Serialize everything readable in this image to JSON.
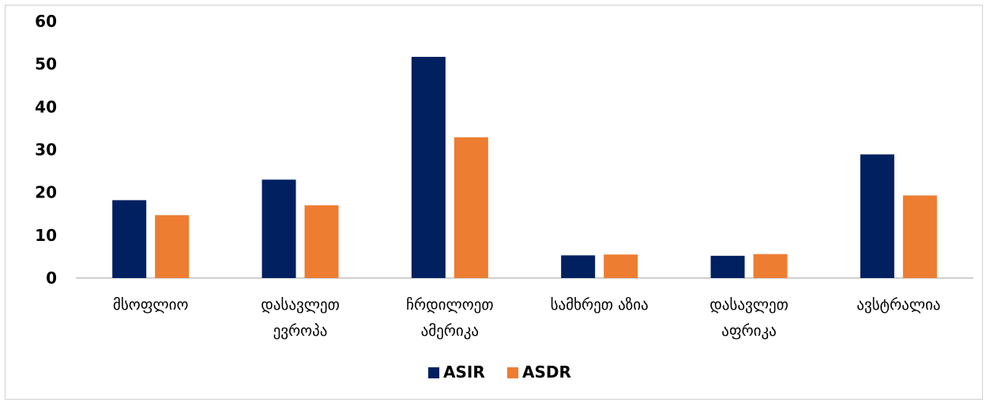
{
  "chart_data": {
    "type": "bar",
    "categories": [
      [
        "მსოფლიო"
      ],
      [
        "დასავლეთ",
        "ევროპა"
      ],
      [
        "ჩრდილოეთ",
        "ამერიკა"
      ],
      [
        "სამხრეთ აზია"
      ],
      [
        "დასავლეთ",
        "აფრიკა"
      ],
      [
        "ავსტრალია"
      ]
    ],
    "series": [
      {
        "name": "ASIR",
        "color": "#002060",
        "values": [
          18.2,
          23.0,
          51.7,
          5.3,
          5.2,
          28.9
        ]
      },
      {
        "name": "ASDR",
        "color": "#ED7D31",
        "values": [
          14.7,
          17.0,
          32.9,
          5.5,
          5.6,
          19.3
        ]
      }
    ],
    "ylim": [
      0,
      60
    ],
    "yticks": [
      0,
      10,
      20,
      30,
      40,
      50,
      60
    ],
    "grid": false,
    "legend_position": "bottom",
    "title": "",
    "xlabel": "",
    "ylabel": ""
  }
}
